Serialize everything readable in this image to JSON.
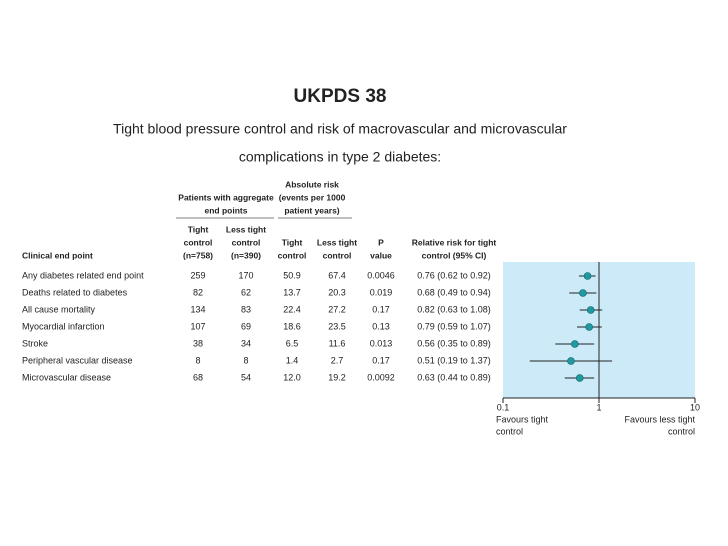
{
  "title": "UKPDS 38",
  "subtitle": [
    "Tight blood pressure control and risk of macrovascular and microvascular",
    "complications in type 2 diabetes:"
  ],
  "table": {
    "group_headers": [
      {
        "lines": [
          "Patients with aggregate",
          "end points"
        ]
      },
      {
        "lines": [
          "Absolute risk",
          "(events per 1000",
          "patient years)"
        ]
      }
    ],
    "headers": [
      [
        "Clinical end point"
      ],
      [
        "Tight",
        "control",
        "(n=758)"
      ],
      [
        "Less tight",
        "control",
        "(n=390)"
      ],
      [
        "Tight",
        "control"
      ],
      [
        "Less tight",
        "control"
      ],
      [
        "P",
        "value"
      ],
      [
        "Relative risk for tight",
        "control (95% CI)"
      ]
    ],
    "rows": [
      [
        "Any diabetes related end point",
        "259",
        "170",
        "50.9",
        "67.4",
        "0.0046",
        "0.76 (0.62 to 0.92)"
      ],
      [
        "Deaths related to diabetes",
        "82",
        "62",
        "13.7",
        "20.3",
        "0.019",
        "0.68 (0.49 to 0.94)"
      ],
      [
        "All cause mortality",
        "134",
        "83",
        "22.4",
        "27.2",
        "0.17",
        "0.82 (0.63 to 1.08)"
      ],
      [
        "Myocardial infarction",
        "107",
        "69",
        "18.6",
        "23.5",
        "0.13",
        "0.79 (0.59 to 1.07)"
      ],
      [
        "Stroke",
        "38",
        "34",
        "6.5",
        "11.6",
        "0.013",
        "0.56 (0.35 to 0.89)"
      ],
      [
        "Peripheral vascular disease",
        "8",
        "8",
        "1.4",
        "2.7",
        "0.17",
        "0.51 (0.19 to 1.37)"
      ],
      [
        "Microvascular disease",
        "68",
        "54",
        "12.0",
        "19.2",
        "0.0092",
        "0.63 (0.44 to 0.89)"
      ]
    ]
  },
  "chart_data": {
    "type": "forest",
    "values": [
      0.76,
      0.68,
      0.82,
      0.79,
      0.56,
      0.51,
      0.63
    ],
    "lower": [
      0.62,
      0.49,
      0.63,
      0.59,
      0.35,
      0.19,
      0.44
    ],
    "upper": [
      0.92,
      0.94,
      1.08,
      1.07,
      0.89,
      1.37,
      0.89
    ],
    "xlim": [
      0.1,
      10
    ],
    "xticks": [
      0.1,
      1,
      10
    ],
    "log_scale": true,
    "reference": 1,
    "x_label_left": [
      "Favours tight",
      "control"
    ],
    "x_label_right": [
      "Favours less tight",
      "control"
    ],
    "color": "#1f9aa0",
    "panel_color": "#cdeaf8"
  }
}
